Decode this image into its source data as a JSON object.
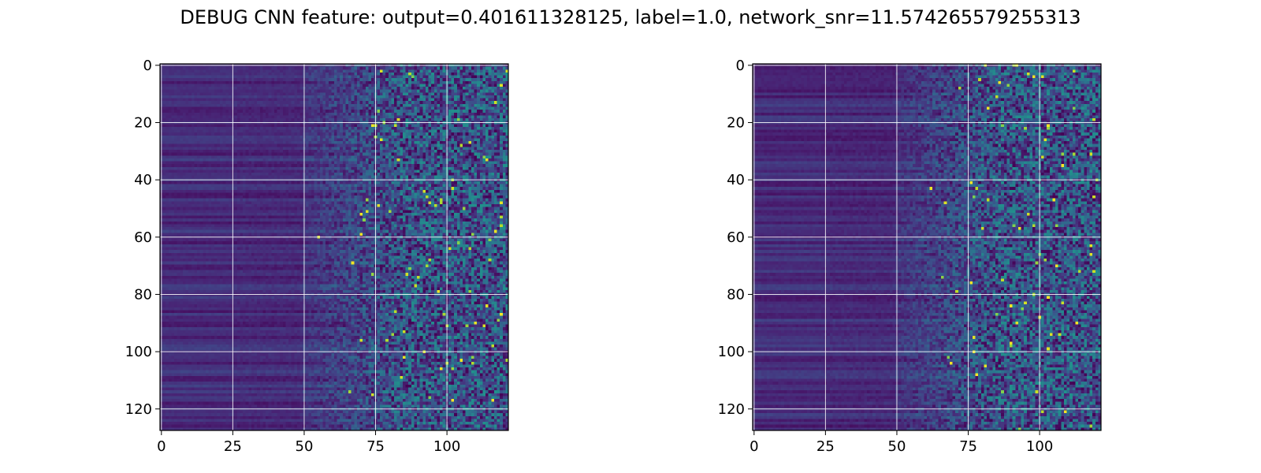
{
  "chart_data": {
    "type": "heatmap",
    "title": "DEBUG CNN feature: output=0.401611328125, label=1.0, network_snr=11.574265579255313",
    "colormap": "viridis",
    "grid": true,
    "panels": [
      {
        "name": "",
        "n_rows": 128,
        "n_cols": 122,
        "xlim": [
          -0.5,
          121.5
        ],
        "ylim": [
          127.5,
          -0.5
        ],
        "xticks": [
          0,
          25,
          50,
          75,
          100
        ],
        "yticks": [
          0,
          20,
          40,
          60,
          80,
          100,
          120
        ],
        "xlabel": "",
        "ylabel": "",
        "seed": 11
      },
      {
        "name": "",
        "n_rows": 128,
        "n_cols": 122,
        "xlim": [
          -0.5,
          121.5
        ],
        "ylim": [
          127.5,
          -0.5
        ],
        "xticks": [
          0,
          25,
          50,
          75,
          100
        ],
        "yticks": [
          0,
          20,
          40,
          60,
          80,
          100,
          120
        ],
        "xlabel": "",
        "ylabel": "",
        "seed": 29
      }
    ]
  }
}
